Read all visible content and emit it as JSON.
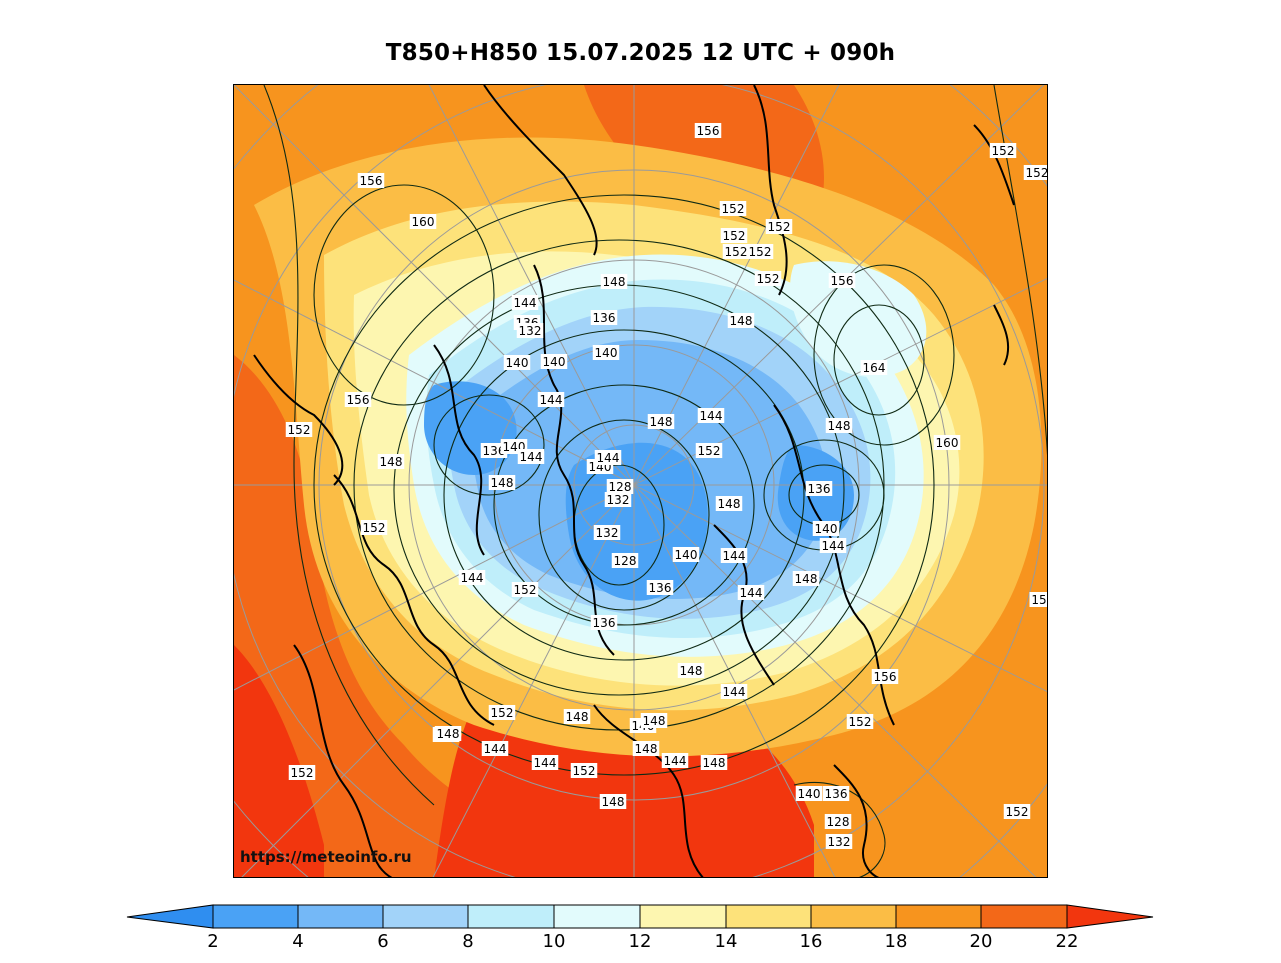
{
  "title": "T850+H850 15.07.2025 12 UTC + 090h",
  "watermark": "https://meteoinfo.ru",
  "colors": {
    "cold_2": "#2f8ef0",
    "c2_4": "#4aa2f5",
    "c4_6": "#74b8f7",
    "c6_8": "#a2d3f9",
    "c8_10": "#bfeefa",
    "c10_12": "#e2fbfc",
    "c12_14": "#fdf6b0",
    "c14_16": "#fde27a",
    "c16_18": "#fbbd45",
    "c18_20": "#f7941e",
    "c20_22": "#f36818",
    "hot_22": "#f2360e",
    "coast": "#000000",
    "grid": "#9a9a9a",
    "contour": "#0f2a14"
  },
  "colorbar": {
    "ticks": [
      "2",
      "4",
      "6",
      "8",
      "10",
      "12",
      "14",
      "16",
      "18",
      "20",
      "22"
    ]
  },
  "contour_labels": [
    "156",
    "152",
    "152",
    "156",
    "160",
    "152",
    "152",
    "152",
    "152",
    "152",
    "148",
    "152",
    "144",
    "136",
    "132",
    "148",
    "156",
    "136",
    "140",
    "140",
    "140",
    "164",
    "156",
    "144",
    "152",
    "148",
    "144",
    "136",
    "140",
    "144",
    "152",
    "148",
    "148",
    "160",
    "148",
    "140",
    "144",
    "128",
    "132",
    "136",
    "148",
    "152",
    "132",
    "128",
    "140",
    "144",
    "140",
    "144",
    "144",
    "152",
    "136",
    "148",
    "144",
    "136",
    "148",
    "144",
    "156",
    "152",
    "148",
    "152",
    "144",
    "144",
    "152",
    "148",
    "140",
    "148",
    "148",
    "144",
    "152",
    "144",
    "140",
    "136",
    "128",
    "132",
    "148",
    "148",
    "15",
    "152"
  ]
}
